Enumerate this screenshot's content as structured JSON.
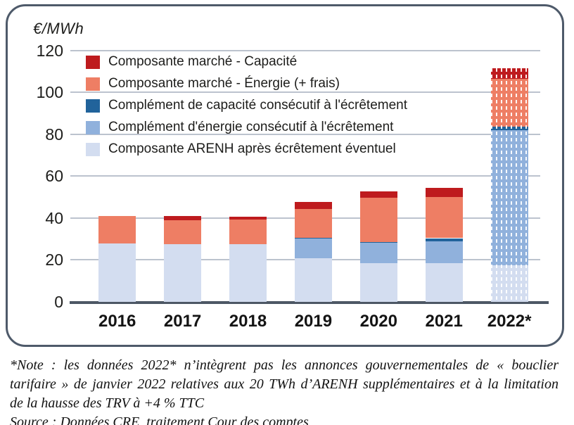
{
  "chart": {
    "unit_label": "€/MWh",
    "y_ticks": [
      120,
      100,
      80,
      60,
      40,
      20,
      0
    ],
    "x_labels": [
      "2016",
      "2017",
      "2018",
      "2019",
      "2020",
      "2021",
      "2022*"
    ],
    "legend": [
      {
        "label": "Composante marché - Capacité",
        "color": "#be1b1e"
      },
      {
        "label": "Composante marché - Énergie (+ frais)",
        "color": "#ee7e64"
      },
      {
        "label": "Complément de capacité consécutif à l'écrêtement",
        "color": "#21639b"
      },
      {
        "label": "Complément d'énergie consécutif à l'écrêtement",
        "color": "#90b1dc"
      },
      {
        "label": "Composante ARENH après écrêtement éventuel",
        "color": "#d3ddf0"
      }
    ]
  },
  "chart_data": {
    "type": "bar",
    "stacked": true,
    "title": "",
    "xlabel": "",
    "ylabel": "€/MWh",
    "ylim": [
      0,
      120
    ],
    "grid": true,
    "legend_position": "inside top-left",
    "categories": [
      "2016",
      "2017",
      "2018",
      "2019",
      "2020",
      "2021",
      "2022*"
    ],
    "series": [
      {
        "name": "Composante ARENH après écrêtement éventuel",
        "color": "#d3ddf0",
        "values": [
          28.0,
          27.5,
          27.5,
          20.7,
          18.6,
          18.4,
          17.5
        ]
      },
      {
        "name": "Complément d'énergie consécutif à l'écrêtement",
        "color": "#90b1dc",
        "values": [
          0,
          0,
          0,
          9.5,
          9.5,
          10.6,
          64.6
        ]
      },
      {
        "name": "Complément de capacité consécutif à l'écrêtement",
        "color": "#21639b",
        "values": [
          0,
          0,
          0,
          0.5,
          0.5,
          1.4,
          1.5
        ]
      },
      {
        "name": "Composante marché - Énergie (+ frais)",
        "color": "#ee7e64",
        "values": [
          13.0,
          11.5,
          11.7,
          13.7,
          21.0,
          19.6,
          22.9
        ]
      },
      {
        "name": "Composante marché - Capacité",
        "color": "#be1b1e",
        "values": [
          0,
          2.0,
          1.5,
          3.4,
          3.0,
          4.5,
          5.1
        ]
      }
    ],
    "totals": [
      41.0,
      41.0,
      40.7,
      47.8,
      52.6,
      54.5,
      111.6
    ],
    "hatched_category": "2022*",
    "hatch_note": "2022* bar drawn with white dashed hatching (provisional data)"
  },
  "note": {
    "lines": [
      "*Note : les données 2022* n’intègrent pas les annonces gouvernementales de « bouclier",
      "tarifaire » de janvier 2022 relatives aux 20 TWh d’ARENH supplémentaires et à la limitation",
      "de la hausse des TRV à +4 % TTC"
    ],
    "source": "Source : Données CRE, traitement Cour des comptes"
  }
}
